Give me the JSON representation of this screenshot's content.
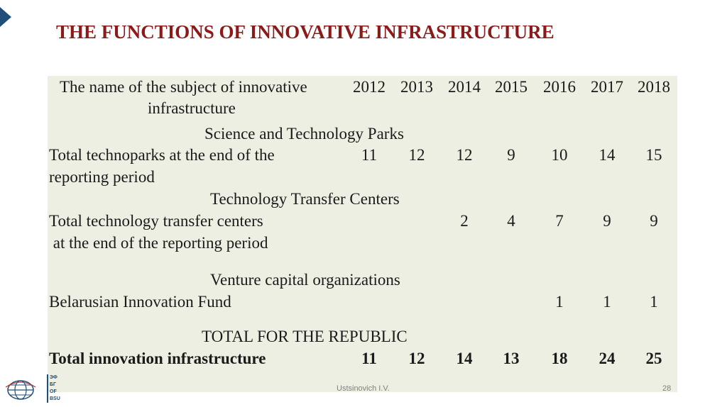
{
  "slide": {
    "title": "THE FUNCTIONS OF INNOVATIVE INFRASTRUCTURE",
    "footer_author": "Ustsinovich I.V.",
    "page_number": "28",
    "logo_text": [
      "ЭФ",
      "БГ",
      "OF BSU"
    ]
  },
  "table": {
    "header_line1": "The name of the subject of innovative",
    "header_line2": "infrastructure",
    "years": [
      "2012",
      "2013",
      "2014",
      "2015",
      "2016",
      "2017",
      "2018"
    ],
    "sections": [
      {
        "heading": "Science and Technology Parks",
        "row_label_line1": "Total technoparks at the end of the",
        "row_label_line2": "reporting period",
        "values": [
          "11",
          "12",
          "12",
          "9",
          "10",
          "14",
          "15"
        ]
      },
      {
        "heading": "Technology Transfer Centers",
        "row_label_line1": "Total technology transfer centers",
        "row_label_line2": " at the end of the reporting period",
        "values": [
          "",
          "",
          "2",
          "4",
          "7",
          "9",
          "9"
        ]
      },
      {
        "heading": "Venture capital organizations",
        "row_label_line1": "Belarusian Innovation Fund",
        "row_label_line2": "",
        "values": [
          "",
          "",
          "",
          "",
          "1",
          "1",
          "1"
        ]
      },
      {
        "heading": "TOTAL FOR THE REPUBLIC",
        "row_label_line1": "Total innovation infrastructure",
        "row_label_line2": "",
        "values": [
          "11",
          "12",
          "14",
          "13",
          "18",
          "24",
          "25"
        ]
      }
    ]
  },
  "colors": {
    "title": "#8b1a1a",
    "table_bg": "#eeefe3",
    "accent": "#1f4e79"
  }
}
